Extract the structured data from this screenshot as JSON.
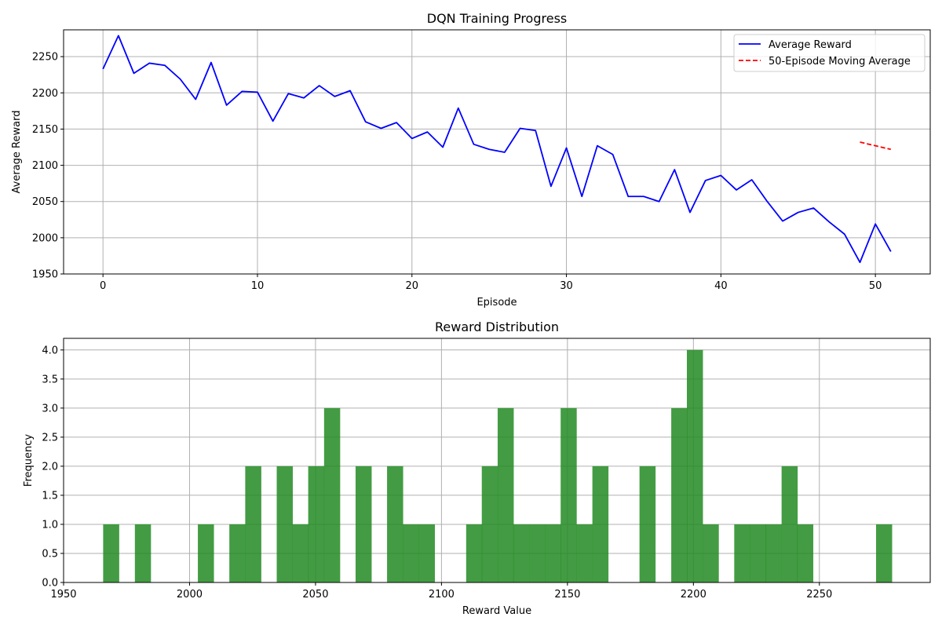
{
  "chart_data": [
    {
      "type": "line",
      "title": "DQN Training Progress",
      "xlabel": "Episode",
      "ylabel": "Average Reward",
      "xlim": [
        -2.55,
        53.55
      ],
      "ylim": [
        1950,
        2287
      ],
      "xticks": [
        0,
        10,
        20,
        30,
        40,
        50
      ],
      "yticks": [
        1950,
        2000,
        2050,
        2100,
        2150,
        2200,
        2250
      ],
      "grid": true,
      "legend_position": "top-right",
      "series": [
        {
          "name": "Average Reward",
          "color": "#0000ff",
          "style": "solid",
          "x": [
            0,
            1,
            2,
            3,
            4,
            5,
            6,
            7,
            8,
            9,
            10,
            11,
            12,
            13,
            14,
            15,
            16,
            17,
            18,
            19,
            20,
            21,
            22,
            23,
            24,
            25,
            26,
            27,
            28,
            29,
            30,
            31,
            32,
            33,
            34,
            35,
            36,
            37,
            38,
            39,
            40,
            41,
            42,
            43,
            44,
            45,
            46,
            47,
            48,
            49,
            50,
            51
          ],
          "y": [
            2233,
            2279,
            2227,
            2241,
            2238,
            2219,
            2191,
            2242,
            2183,
            2202,
            2201,
            2161,
            2199,
            2193,
            2210,
            2195,
            2203,
            2160,
            2151,
            2159,
            2137,
            2146,
            2125,
            2179,
            2129,
            2122,
            2118,
            2151,
            2148,
            2071,
            2124,
            2057,
            2127,
            2115,
            2057,
            2057,
            2050,
            2094,
            2035,
            2079,
            2086,
            2066,
            2080,
            2050,
            2023,
            2035,
            2041,
            2022,
            2005,
            1966,
            2019,
            1981
          ]
        },
        {
          "name": "50-Episode Moving Average",
          "color": "#ff0000",
          "style": "dashed",
          "x": [
            49,
            50,
            51
          ],
          "y": [
            2132,
            2127,
            2122
          ]
        }
      ]
    },
    {
      "type": "bar",
      "subtype": "histogram",
      "title": "Reward Distribution",
      "xlabel": "Reward Value",
      "ylabel": "Frequency",
      "xlim": [
        1950,
        2294
      ],
      "ylim": [
        0,
        4.2
      ],
      "xticks": [
        1950,
        2000,
        2050,
        2100,
        2150,
        2200,
        2250
      ],
      "yticks": [
        "0.0",
        "0.5",
        "1.0",
        "1.5",
        "2.0",
        "2.5",
        "3.0",
        "3.5",
        "4.0"
      ],
      "grid": true,
      "color": "#228B22",
      "opacity": 0.85,
      "bin_width": 6.26,
      "bins": [
        {
          "start": 1965.7,
          "count": 1
        },
        {
          "start": 1978.3,
          "count": 1
        },
        {
          "start": 2003.3,
          "count": 1
        },
        {
          "start": 2015.8,
          "count": 1
        },
        {
          "start": 2022.1,
          "count": 2
        },
        {
          "start": 2034.6,
          "count": 2
        },
        {
          "start": 2040.9,
          "count": 1
        },
        {
          "start": 2047.1,
          "count": 2
        },
        {
          "start": 2053.4,
          "count": 3
        },
        {
          "start": 2065.9,
          "count": 2
        },
        {
          "start": 2078.4,
          "count": 2
        },
        {
          "start": 2084.7,
          "count": 1
        },
        {
          "start": 2091.0,
          "count": 1
        },
        {
          "start": 2109.8,
          "count": 1
        },
        {
          "start": 2116.0,
          "count": 2
        },
        {
          "start": 2122.3,
          "count": 3
        },
        {
          "start": 2128.5,
          "count": 1
        },
        {
          "start": 2134.8,
          "count": 1
        },
        {
          "start": 2141.1,
          "count": 1
        },
        {
          "start": 2147.3,
          "count": 3
        },
        {
          "start": 2153.6,
          "count": 1
        },
        {
          "start": 2159.9,
          "count": 2
        },
        {
          "start": 2178.6,
          "count": 2
        },
        {
          "start": 2191.2,
          "count": 3
        },
        {
          "start": 2197.4,
          "count": 4
        },
        {
          "start": 2203.7,
          "count": 1
        },
        {
          "start": 2216.2,
          "count": 1
        },
        {
          "start": 2222.5,
          "count": 1
        },
        {
          "start": 2228.7,
          "count": 1
        },
        {
          "start": 2235.0,
          "count": 2
        },
        {
          "start": 2241.2,
          "count": 1
        },
        {
          "start": 2272.5,
          "count": 1
        }
      ]
    }
  ]
}
